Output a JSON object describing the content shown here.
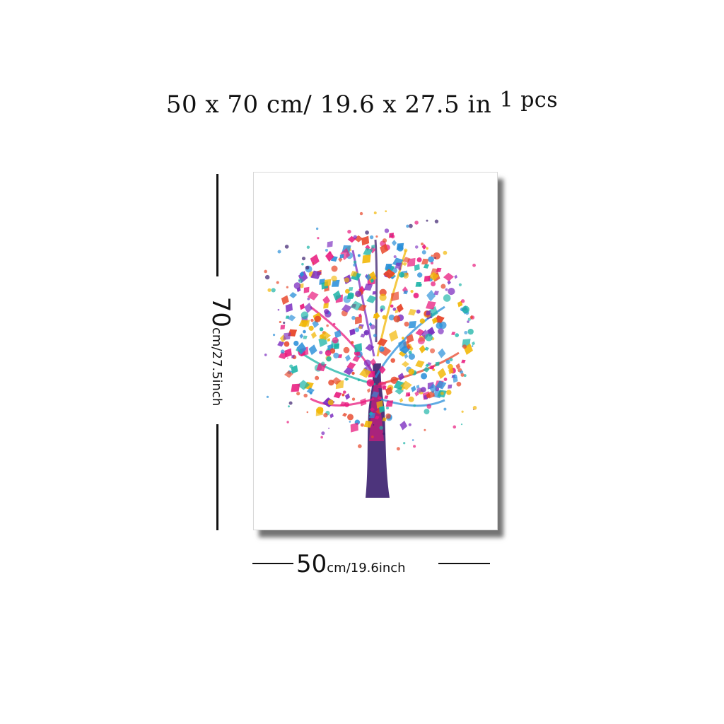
{
  "header": {
    "size_text": "50 x 70 cm/ 19.6 x 27.5 in",
    "quantity": "1 pcs"
  },
  "height_dimension": {
    "value": "70",
    "unit_text": "cm/27.5inch"
  },
  "width_dimension": {
    "value": "50",
    "unit_text": "cm/19.6inch"
  },
  "artwork": {
    "subject": "tree-of-life-icon",
    "colors": [
      "#e8197d",
      "#2a8fd9",
      "#7b2bbf",
      "#f2b705",
      "#19b3a6",
      "#e8462a",
      "#3a1e6e"
    ]
  }
}
